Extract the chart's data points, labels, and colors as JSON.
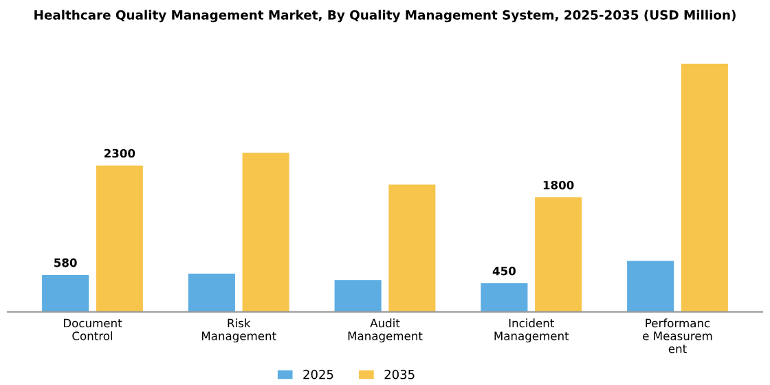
{
  "chart_data": {
    "type": "bar",
    "title": "Healthcare Quality Management Market, By Quality Management System, 2025-2035 (USD Million)",
    "categories": [
      "Document\nControl",
      "Risk\nManagement",
      "Audit\nManagement",
      "Incident\nManagement",
      "Performanc\ne Measurem\nent"
    ],
    "series": [
      {
        "name": "2025",
        "color": "#5dade2",
        "values": [
          580,
          600,
          500,
          450,
          800
        ],
        "value_labels": [
          "580",
          null,
          null,
          "450",
          null
        ]
      },
      {
        "name": "2035",
        "color": "#f7c54c",
        "values": [
          2300,
          2500,
          2000,
          1800,
          3900
        ],
        "value_labels": [
          "2300",
          null,
          null,
          "1800",
          null
        ]
      }
    ],
    "legend": "bottom",
    "grid": false
  }
}
